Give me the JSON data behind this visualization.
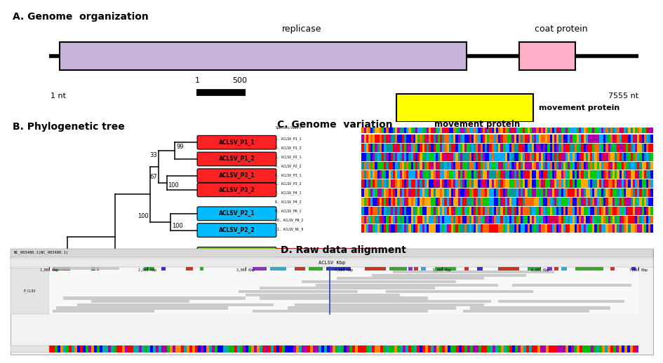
{
  "title_A": "A. Genome  organization",
  "title_B": "B. Phylogenetic tree",
  "title_C": "C. Genome  variation",
  "title_D": "D. Raw data alignment",
  "replicase_label": "replicase",
  "coat_protein_label": "coat protein",
  "movement_protein_label": "movement protein",
  "nt_start": "1 nt",
  "nt_end": "7555 nt",
  "scale_label": "1    500",
  "leaf_colors": {
    "ACLSV_P1_1": "#ff2222",
    "ACLSV_P1_2": "#ff2222",
    "ACLSV_P3_1": "#ff2222",
    "ACLSV_P3_2": "#ff2222",
    "ACLSV_P2_1": "#00bbff",
    "ACLSV_P2_2": "#00bbff",
    "ACLSV_P4_1": "#77dd00",
    "ACLSV_P4_2": "#77dd00",
    "ACLSV_P6_1": "#ffcc00",
    "ACLSV_P6_2": "#ffcc00",
    "ACLSV": "#bbbbbb"
  },
  "seq_labels": [
    "1. ACLSV_P1_1",
    "2. ACLSV_P1_2",
    "3. ACLSV_P2_1",
    "4. ACLSV_P2_2",
    "5. ACLSV_P3_1",
    "6. ACLSV_P3_2",
    "7. ACLSV_P4_1",
    "8. ACLSV_P4_2",
    "9. ACLSV_P6_1",
    "10. ACLSV_P6_2",
    "11. ACLSV_NC_0"
  ]
}
